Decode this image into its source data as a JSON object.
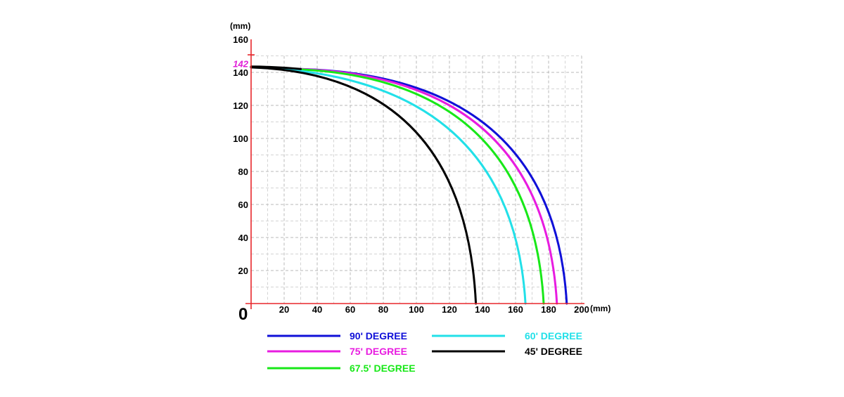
{
  "chart_data": {
    "type": "line",
    "title": "",
    "xlabel": "(mm)",
    "ylabel": "(mm)",
    "origin_label": "0",
    "xlim": [
      0,
      200
    ],
    "ylim": [
      0,
      160
    ],
    "x_ticks": [
      20,
      40,
      60,
      80,
      100,
      120,
      140,
      160,
      180,
      200
    ],
    "y_ticks": [
      20,
      40,
      60,
      80,
      100,
      120,
      140,
      160
    ],
    "grid": true,
    "grid_style": "dashed",
    "axis_color": "#e8262b",
    "highlight_y": {
      "label": "142",
      "value": 142,
      "color": "#e020d8"
    },
    "legend_position": "bottom",
    "series": [
      {
        "name": "90' DEGREE",
        "color": "#1010d8",
        "end_x": 191,
        "start_x": 30,
        "start_y": 142
      },
      {
        "name": "75' DEGREE",
        "color": "#e81ce0",
        "end_x": 185,
        "start_x": 28,
        "start_y": 142
      },
      {
        "name": "67.5' DEGREE",
        "color": "#18e818",
        "end_x": 177,
        "start_x": 24,
        "start_y": 142
      },
      {
        "name": "60' DEGREE",
        "color": "#22e0e8",
        "end_x": 166,
        "start_x": 0,
        "start_y": 143
      },
      {
        "name": "45' DEGREE",
        "color": "#000000",
        "end_x": 136,
        "start_x": 0,
        "start_y": 143
      }
    ]
  }
}
